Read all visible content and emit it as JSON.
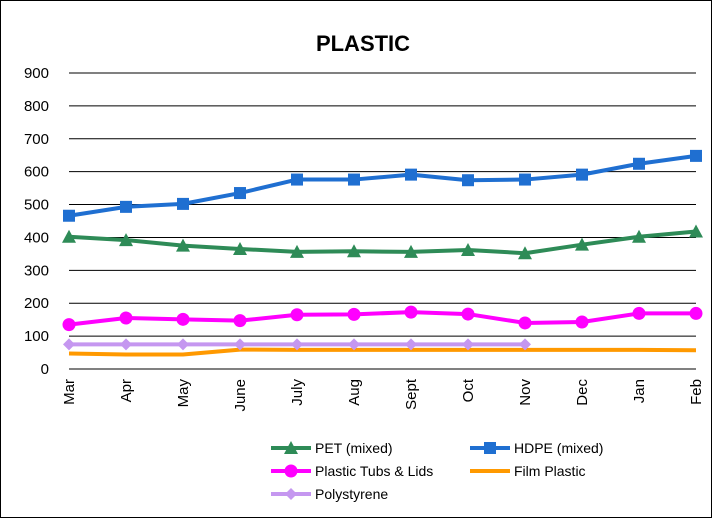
{
  "chart_data": {
    "type": "line",
    "title": "PLASTIC",
    "xlabel": "",
    "ylabel": "",
    "categories": [
      "Mar",
      "Apr",
      "May",
      "June",
      "July",
      "Aug",
      "Sept",
      "Oct",
      "Nov",
      "Dec",
      "Jan",
      "Feb"
    ],
    "ylim": [
      0,
      900
    ],
    "yticks": [
      0,
      100,
      200,
      300,
      400,
      500,
      600,
      700,
      800,
      900
    ],
    "grid": true,
    "legend_position": "bottom",
    "series": [
      {
        "name": "PET (mixed)",
        "color": "#2E8B57",
        "marker": "triangle",
        "values": [
          402,
          392,
          375,
          365,
          356,
          358,
          356,
          362,
          352,
          378,
          402,
          418
        ]
      },
      {
        "name": "HDPE (mixed)",
        "color": "#1F6FD1",
        "marker": "square",
        "values": [
          466,
          493,
          502,
          535,
          576,
          576,
          591,
          574,
          576,
          591,
          624,
          648
        ]
      },
      {
        "name": "Plastic Tubs & Lids",
        "color": "#FF00FF",
        "marker": "circle",
        "values": [
          135,
          155,
          151,
          147,
          165,
          166,
          173,
          167,
          140,
          143,
          169,
          169
        ]
      },
      {
        "name": "Film Plastic",
        "color": "#FF9900",
        "marker": "none",
        "values": [
          47,
          44,
          44,
          59,
          58,
          58,
          58,
          58,
          58,
          58,
          58,
          57
        ]
      },
      {
        "name": "Polystyrene",
        "color": "#C597F0",
        "marker": "diamond",
        "values": [
          75,
          75,
          75,
          75,
          75,
          75,
          75,
          75,
          75,
          null,
          null,
          null
        ]
      }
    ]
  }
}
